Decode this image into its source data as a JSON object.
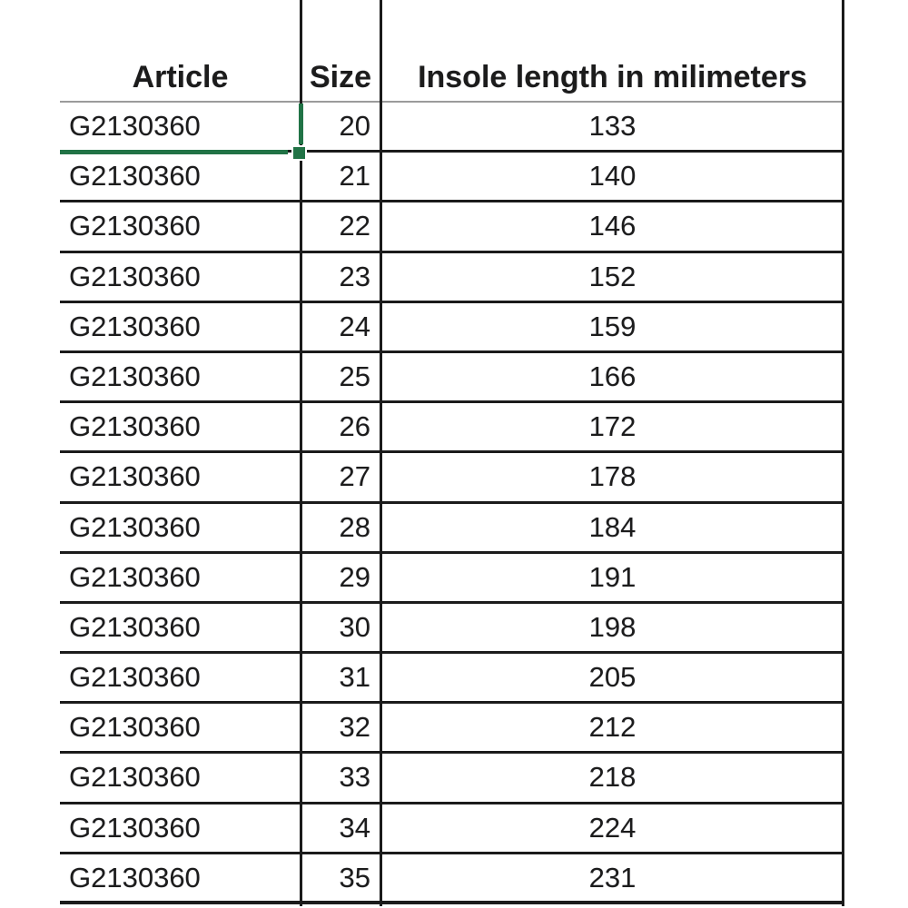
{
  "colors": {
    "background": "#ffffff",
    "gridline": "#1b1b1b",
    "header_rule": "#9b9b9b",
    "selection_green": "#217346",
    "text": "#1c1c1c"
  },
  "table": {
    "headers": [
      "Article",
      "Size",
      "Insole length in milimeters"
    ],
    "rows": [
      {
        "article": "G2130360",
        "size": "20",
        "insole": "133"
      },
      {
        "article": "G2130360",
        "size": "21",
        "insole": "140"
      },
      {
        "article": "G2130360",
        "size": "22",
        "insole": "146"
      },
      {
        "article": "G2130360",
        "size": "23",
        "insole": "152"
      },
      {
        "article": "G2130360",
        "size": "24",
        "insole": "159"
      },
      {
        "article": "G2130360",
        "size": "25",
        "insole": "166"
      },
      {
        "article": "G2130360",
        "size": "26",
        "insole": "172"
      },
      {
        "article": "G2130360",
        "size": "27",
        "insole": "178"
      },
      {
        "article": "G2130360",
        "size": "28",
        "insole": "184"
      },
      {
        "article": "G2130360",
        "size": "29",
        "insole": "191"
      },
      {
        "article": "G2130360",
        "size": "30",
        "insole": "198"
      },
      {
        "article": "G2130360",
        "size": "31",
        "insole": "205"
      },
      {
        "article": "G2130360",
        "size": "32",
        "insole": "212"
      },
      {
        "article": "G2130360",
        "size": "33",
        "insole": "218"
      },
      {
        "article": "G2130360",
        "size": "34",
        "insole": "224"
      },
      {
        "article": "G2130360",
        "size": "35",
        "insole": "231"
      }
    ]
  },
  "selection": {
    "selected_cell_value": "G2130360",
    "selected_row_size": "20",
    "border_sides_visible": "right, bottom",
    "has_fill_handle": true
  }
}
